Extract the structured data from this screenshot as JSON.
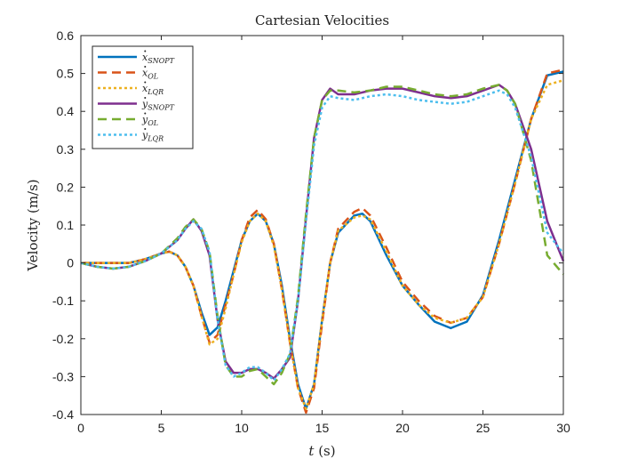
{
  "chart_data": {
    "type": "line",
    "title": "Cartesian Velocities",
    "xlabel": "t (s)",
    "ylabel": "Velocity (m/s)",
    "xlim": [
      0,
      30
    ],
    "ylim": [
      -0.4,
      0.6
    ],
    "xticks": [
      0,
      5,
      10,
      15,
      20,
      25,
      30
    ],
    "yticks": [
      -0.4,
      -0.3,
      -0.2,
      -0.1,
      0,
      0.1,
      0.2,
      0.3,
      0.4,
      0.5,
      0.6
    ],
    "grid": false,
    "legend_position": "top-left",
    "series": [
      {
        "name": "x_SNOPT",
        "base": "x",
        "dot": true,
        "sub": "SNOPT",
        "color": "#0072BD",
        "style": "solid",
        "x": [
          0,
          1,
          2,
          3,
          4,
          5,
          5.5,
          6,
          6.5,
          7,
          7.5,
          8,
          8.5,
          9,
          9.5,
          10,
          10.5,
          11,
          11.5,
          12,
          12.5,
          13,
          13.5,
          14,
          14.5,
          15,
          15.5,
          16,
          17,
          17.5,
          18,
          19,
          20,
          21,
          22,
          23,
          24,
          25,
          26,
          27,
          28,
          29,
          30
        ],
        "y": [
          0,
          0,
          0,
          0,
          0.01,
          0.025,
          0.03,
          0.02,
          -0.01,
          -0.06,
          -0.13,
          -0.19,
          -0.17,
          -0.1,
          -0.02,
          0.06,
          0.11,
          0.13,
          0.11,
          0.05,
          -0.06,
          -0.2,
          -0.32,
          -0.385,
          -0.32,
          -0.15,
          0,
          0.08,
          0.125,
          0.13,
          0.11,
          0.02,
          -0.06,
          -0.11,
          -0.155,
          -0.172,
          -0.155,
          -0.085,
          0.06,
          0.22,
          0.38,
          0.495,
          0.505
        ]
      },
      {
        "name": "x_OL",
        "base": "x",
        "dot": true,
        "sub": "OL",
        "color": "#D95319",
        "style": "dashed",
        "x": [
          0,
          1,
          2,
          3,
          4,
          5,
          5.5,
          6,
          6.5,
          7,
          7.5,
          8,
          8.5,
          9,
          9.5,
          10,
          10.5,
          11,
          11.5,
          12,
          12.5,
          13,
          13.5,
          14,
          14.5,
          15,
          15.5,
          16,
          17,
          17.5,
          18,
          19,
          20,
          21,
          22,
          23,
          24,
          25,
          26,
          27,
          28,
          29,
          30
        ],
        "y": [
          0,
          0,
          0,
          0,
          0.01,
          0.025,
          0.03,
          0.02,
          -0.01,
          -0.06,
          -0.14,
          -0.21,
          -0.19,
          -0.11,
          -0.03,
          0.06,
          0.12,
          0.14,
          0.115,
          0.05,
          -0.07,
          -0.21,
          -0.33,
          -0.395,
          -0.33,
          -0.16,
          0,
          0.09,
          0.135,
          0.145,
          0.125,
          0.04,
          -0.05,
          -0.1,
          -0.14,
          -0.158,
          -0.145,
          -0.09,
          0.05,
          0.21,
          0.38,
          0.5,
          0.51
        ]
      },
      {
        "name": "x_LQR",
        "base": "x",
        "dot": true,
        "sub": "LQR",
        "color": "#EDB120",
        "style": "dotted",
        "x": [
          0,
          1,
          2,
          3,
          4,
          5,
          5.5,
          6,
          6.5,
          7,
          7.5,
          8,
          8.5,
          9,
          9.5,
          10,
          10.5,
          11,
          11.5,
          12,
          12.5,
          13,
          13.5,
          14,
          14.5,
          15,
          15.5,
          16,
          17,
          17.5,
          18,
          19,
          20,
          21,
          22,
          23,
          24,
          25,
          26,
          27,
          28,
          29,
          30
        ],
        "y": [
          0,
          0,
          0,
          0,
          0.01,
          0.025,
          0.03,
          0.02,
          -0.01,
          -0.06,
          -0.14,
          -0.215,
          -0.2,
          -0.12,
          -0.03,
          0.055,
          0.11,
          0.13,
          0.11,
          0.045,
          -0.07,
          -0.21,
          -0.33,
          -0.385,
          -0.32,
          -0.15,
          0,
          0.085,
          0.12,
          0.125,
          0.115,
          0.03,
          -0.06,
          -0.11,
          -0.145,
          -0.158,
          -0.145,
          -0.09,
          0.05,
          0.21,
          0.38,
          0.47,
          0.482
        ]
      },
      {
        "name": "y_SNOPT",
        "base": "y",
        "dot": true,
        "sub": "SNOPT",
        "color": "#7E2F8E",
        "style": "solid",
        "x": [
          0,
          1,
          2,
          3,
          4,
          5,
          6,
          6.5,
          7,
          7.5,
          8,
          8.5,
          9,
          9.5,
          10,
          10.5,
          11,
          11.5,
          12,
          12.5,
          13,
          13.5,
          14,
          14.5,
          15,
          15.5,
          16,
          17,
          18,
          19,
          20,
          21,
          22,
          23,
          24,
          25,
          26,
          26.5,
          27,
          28,
          29,
          30
        ],
        "y": [
          0,
          -0.01,
          -0.015,
          -0.01,
          0.005,
          0.025,
          0.06,
          0.09,
          0.115,
          0.085,
          0.02,
          -0.15,
          -0.26,
          -0.29,
          -0.29,
          -0.28,
          -0.28,
          -0.29,
          -0.305,
          -0.28,
          -0.25,
          -0.1,
          0.12,
          0.33,
          0.43,
          0.46,
          0.445,
          0.445,
          0.455,
          0.46,
          0.46,
          0.45,
          0.44,
          0.435,
          0.44,
          0.455,
          0.47,
          0.455,
          0.42,
          0.3,
          0.11,
          0.005
        ]
      },
      {
        "name": "y_OL",
        "base": "y",
        "dot": true,
        "sub": "OL",
        "color": "#77AC30",
        "style": "dashed",
        "x": [
          0,
          1,
          2,
          3,
          4,
          5,
          6,
          6.5,
          7,
          7.5,
          8,
          8.5,
          9,
          9.5,
          10,
          10.5,
          11,
          11.5,
          12,
          12.5,
          13,
          13.5,
          14,
          14.5,
          15,
          15.5,
          16,
          17,
          18,
          19,
          20,
          21,
          22,
          23,
          24,
          25,
          26,
          26.5,
          27,
          28,
          29,
          30
        ],
        "y": [
          0,
          -0.01,
          -0.015,
          -0.01,
          0.005,
          0.025,
          0.065,
          0.095,
          0.115,
          0.09,
          0.03,
          -0.14,
          -0.27,
          -0.3,
          -0.3,
          -0.285,
          -0.28,
          -0.3,
          -0.32,
          -0.29,
          -0.24,
          -0.09,
          0.13,
          0.33,
          0.43,
          0.455,
          0.455,
          0.45,
          0.455,
          0.465,
          0.465,
          0.455,
          0.445,
          0.44,
          0.445,
          0.46,
          0.47,
          0.455,
          0.42,
          0.27,
          0.02,
          -0.03
        ]
      },
      {
        "name": "y_LQR",
        "base": "y",
        "dot": true,
        "sub": "LQR",
        "color": "#4DBEEE",
        "style": "dotted",
        "x": [
          0,
          1,
          2,
          3,
          4,
          5,
          6,
          6.5,
          7,
          7.5,
          8,
          8.5,
          9,
          9.5,
          10,
          10.5,
          11,
          11.5,
          12,
          12.5,
          13,
          13.5,
          14,
          14.5,
          15,
          15.5,
          16,
          17,
          18,
          19,
          20,
          21,
          22,
          23,
          24,
          25,
          26,
          26.5,
          27,
          28,
          29,
          30
        ],
        "y": [
          0,
          -0.01,
          -0.015,
          -0.01,
          0.005,
          0.025,
          0.06,
          0.09,
          0.11,
          0.09,
          0.03,
          -0.15,
          -0.27,
          -0.3,
          -0.29,
          -0.275,
          -0.275,
          -0.29,
          -0.31,
          -0.28,
          -0.24,
          -0.1,
          0.11,
          0.31,
          0.41,
          0.44,
          0.435,
          0.43,
          0.44,
          0.445,
          0.44,
          0.43,
          0.425,
          0.42,
          0.425,
          0.44,
          0.455,
          0.445,
          0.41,
          0.28,
          0.08,
          0.025
        ]
      }
    ]
  }
}
